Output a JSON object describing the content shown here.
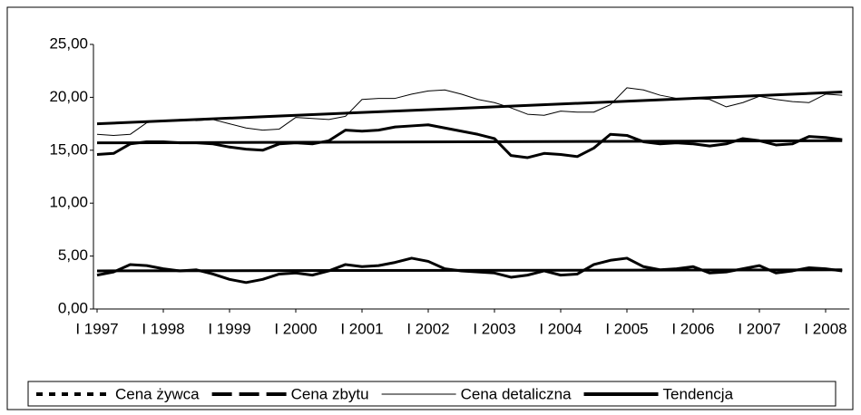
{
  "chart_data": {
    "type": "line",
    "categories": [
      "I 1997",
      null,
      null,
      null,
      "I 1998",
      null,
      null,
      null,
      "I 1999",
      null,
      null,
      null,
      "I 2000",
      null,
      null,
      null,
      "I 2001",
      null,
      null,
      null,
      "I 2002",
      null,
      null,
      null,
      "I 2003",
      null,
      null,
      null,
      "I 2004",
      null,
      null,
      null,
      "I 2005",
      null,
      null,
      null,
      "I 2006",
      null,
      null,
      null,
      "I 2007",
      null,
      null,
      null,
      "I 2008",
      null
    ],
    "series": [
      {
        "name": "Cena żywca",
        "color": "#000000",
        "width": 3,
        "legend_dash": "7,7",
        "values": [
          3.2,
          3.5,
          4.2,
          4.1,
          3.8,
          3.6,
          3.7,
          3.3,
          2.8,
          2.5,
          2.8,
          3.3,
          3.4,
          3.2,
          3.6,
          4.2,
          4.0,
          4.1,
          4.4,
          4.8,
          4.5,
          3.8,
          3.6,
          3.5,
          3.4,
          3.0,
          3.2,
          3.6,
          3.2,
          3.3,
          4.2,
          4.6,
          4.8,
          4.0,
          3.7,
          3.8,
          4.0,
          3.4,
          3.5,
          3.8,
          4.1,
          3.4,
          3.6,
          3.9,
          3.8,
          3.6
        ]
      },
      {
        "name": "Cena zbytu",
        "color": "#000000",
        "width": 3,
        "legend_dash": "22,8",
        "values": [
          14.6,
          14.7,
          15.6,
          15.8,
          15.8,
          15.7,
          15.7,
          15.6,
          15.3,
          15.1,
          15.0,
          15.6,
          15.7,
          15.6,
          15.9,
          16.9,
          16.8,
          16.9,
          17.2,
          17.3,
          17.4,
          17.1,
          16.8,
          16.5,
          16.1,
          14.5,
          14.3,
          14.7,
          14.6,
          14.4,
          15.2,
          16.5,
          16.4,
          15.8,
          15.6,
          15.7,
          15.6,
          15.4,
          15.6,
          16.1,
          15.9,
          15.5,
          15.6,
          16.3,
          16.2,
          16.0
        ]
      },
      {
        "name": "Cena detaliczna",
        "color": "#000000",
        "width": 1,
        "legend_dash": "none",
        "values": [
          16.5,
          16.4,
          16.5,
          17.6,
          17.8,
          17.9,
          17.8,
          17.9,
          17.5,
          17.1,
          16.9,
          17.0,
          18.1,
          18.0,
          17.9,
          18.2,
          19.8,
          19.9,
          19.9,
          20.3,
          20.6,
          20.7,
          20.3,
          19.8,
          19.5,
          19.0,
          18.4,
          18.3,
          18.7,
          18.6,
          18.6,
          19.3,
          20.9,
          20.7,
          20.2,
          19.9,
          19.9,
          19.8,
          19.1,
          19.5,
          20.1,
          19.8,
          19.6,
          19.5,
          20.3,
          20.2
        ]
      }
    ],
    "trend": {
      "name": "Tendencja",
      "color": "#000000",
      "width": 3,
      "lines": [
        [
          3.6,
          3.7
        ],
        [
          15.7,
          15.9
        ],
        [
          17.5,
          20.5
        ]
      ]
    },
    "ylim": [
      0,
      25
    ],
    "yticks": [
      {
        "value": 0,
        "label": "0,00"
      },
      {
        "value": 5,
        "label": "5,00"
      },
      {
        "value": 10,
        "label": "10,00"
      },
      {
        "value": 15,
        "label": "15,00"
      },
      {
        "value": 20,
        "label": "20,00"
      },
      {
        "value": 25,
        "label": "25,00"
      }
    ]
  }
}
